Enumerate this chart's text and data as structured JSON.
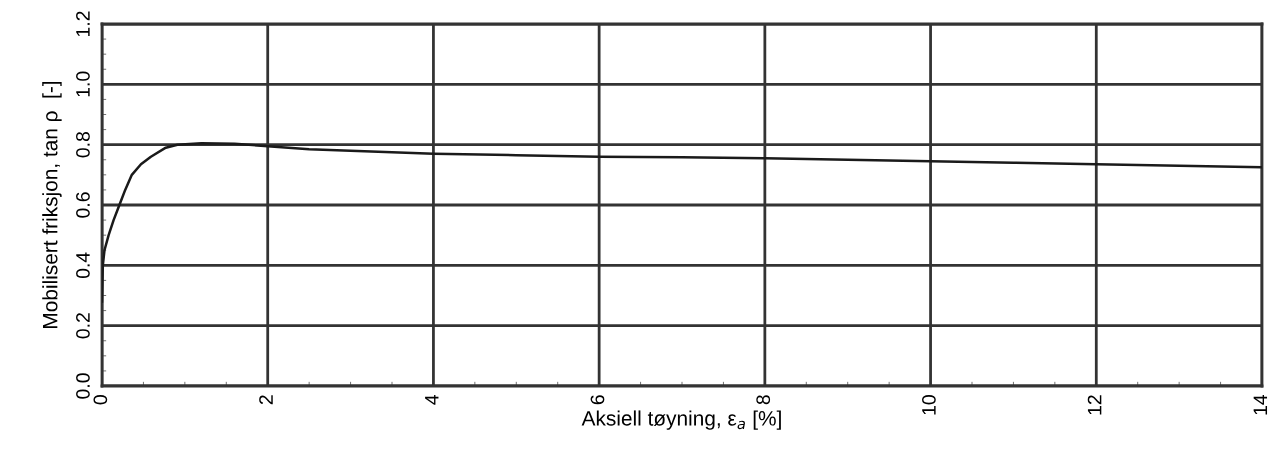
{
  "chart_data": {
    "type": "line",
    "xlabel": "Aksiell tøyning, ε$_{a}$ [%]",
    "ylabel": "Mobilisert friksjon, tan ρ  [-]",
    "series": [
      {
        "color": "#1a1a1a",
        "x": [
          0,
          0.005,
          0.01,
          0.03,
          0.08,
          0.14,
          0.21,
          0.28,
          0.36,
          0.47,
          0.59,
          0.77,
          0.91,
          1.2,
          1.6,
          2,
          2.5,
          3,
          4,
          5,
          6,
          7,
          8,
          9,
          10,
          11,
          12,
          13,
          14
        ],
        "values": [
          0.28,
          0.34,
          0.4,
          0.45,
          0.5,
          0.55,
          0.6,
          0.65,
          0.7,
          0.735,
          0.76,
          0.79,
          0.8,
          0.805,
          0.803,
          0.795,
          0.785,
          0.78,
          0.77,
          0.765,
          0.76,
          0.758,
          0.755,
          0.75,
          0.745,
          0.74,
          0.735,
          0.73,
          0.725
        ]
      }
    ],
    "xlim": [
      0,
      14
    ],
    "xticks": [
      0,
      2,
      4,
      6,
      8,
      10,
      12,
      14
    ],
    "ylim": [
      0,
      1.2
    ],
    "yticks": [
      {
        "value": 0,
        "label": "0.0"
      },
      0.2,
      0.4,
      0.6,
      0.8,
      {
        "value": 1.0,
        "label": "1.0"
      },
      1.2
    ],
    "grid": true,
    "marker": "none",
    "line_style": "solid"
  }
}
